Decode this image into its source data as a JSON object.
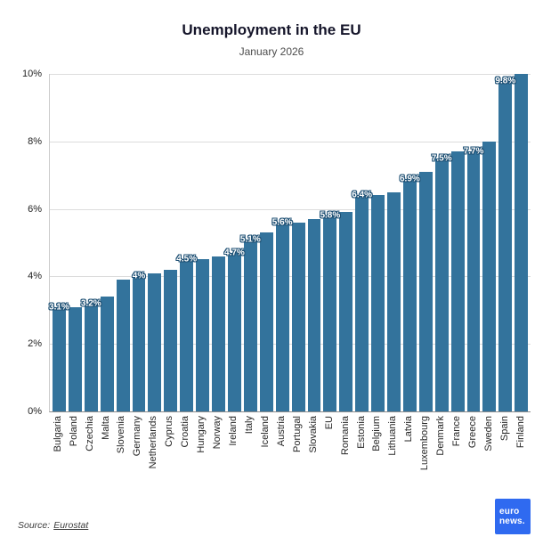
{
  "header": {
    "title": "Unemployment in the EU",
    "subtitle": "January 2026"
  },
  "footer": {
    "source_prefix": "Source:",
    "source_link": "Eurostat",
    "logo_line1": "euro",
    "logo_line2": "news."
  },
  "colors": {
    "bar": "#33739c",
    "bar_label_text": "#ffffff",
    "bar_label_outline": "#1d4f73",
    "grid": "#dcdcdc",
    "axis": "#8c8c8c",
    "logo_bg": "#2f6af0"
  },
  "chart_data": {
    "type": "bar",
    "title": "Unemployment in the EU",
    "subtitle": "January 2026",
    "unit": "%",
    "ylim": [
      0,
      10
    ],
    "grid": "horizontal",
    "legend": "none",
    "yticks": [
      {
        "value": 0,
        "label": "0%"
      },
      {
        "value": 2,
        "label": "2%"
      },
      {
        "value": 4,
        "label": "4%"
      },
      {
        "value": 6,
        "label": "6%"
      },
      {
        "value": 8,
        "label": "8%"
      },
      {
        "value": 10,
        "label": "10%"
      }
    ],
    "points": [
      {
        "country": "Bulgaria",
        "value": 3.1,
        "bar_label": "3.1%"
      },
      {
        "country": "Poland",
        "value": 3.1,
        "bar_label": ""
      },
      {
        "country": "Czechia",
        "value": 3.2,
        "bar_label": "3.2%"
      },
      {
        "country": "Malta",
        "value": 3.4,
        "bar_label": ""
      },
      {
        "country": "Slovenia",
        "value": 3.9,
        "bar_label": ""
      },
      {
        "country": "Germany",
        "value": 4.0,
        "bar_label": "4%"
      },
      {
        "country": "Netherlands",
        "value": 4.1,
        "bar_label": ""
      },
      {
        "country": "Cyprus",
        "value": 4.2,
        "bar_label": ""
      },
      {
        "country": "Croatia",
        "value": 4.5,
        "bar_label": "4.5%"
      },
      {
        "country": "Hungary",
        "value": 4.5,
        "bar_label": ""
      },
      {
        "country": "Norway",
        "value": 4.6,
        "bar_label": ""
      },
      {
        "country": "Ireland",
        "value": 4.7,
        "bar_label": "4.7%"
      },
      {
        "country": "Italy",
        "value": 5.1,
        "bar_label": "5.1%"
      },
      {
        "country": "Iceland",
        "value": 5.3,
        "bar_label": ""
      },
      {
        "country": "Austria",
        "value": 5.6,
        "bar_label": "5.6%"
      },
      {
        "country": "Portugal",
        "value": 5.6,
        "bar_label": ""
      },
      {
        "country": "Slovakia",
        "value": 5.7,
        "bar_label": ""
      },
      {
        "country": "EU",
        "value": 5.8,
        "bar_label": "5.8%"
      },
      {
        "country": "Romania",
        "value": 5.9,
        "bar_label": ""
      },
      {
        "country": "Estonia",
        "value": 6.4,
        "bar_label": "6.4%"
      },
      {
        "country": "Belgium",
        "value": 6.4,
        "bar_label": ""
      },
      {
        "country": "Lithuania",
        "value": 6.5,
        "bar_label": ""
      },
      {
        "country": "Latvia",
        "value": 6.9,
        "bar_label": "6.9%"
      },
      {
        "country": "Luxembourg",
        "value": 7.1,
        "bar_label": ""
      },
      {
        "country": "Denmark",
        "value": 7.5,
        "bar_label": "7.5%"
      },
      {
        "country": "France",
        "value": 7.7,
        "bar_label": ""
      },
      {
        "country": "Greece",
        "value": 7.7,
        "bar_label": "7.7%"
      },
      {
        "country": "Sweden",
        "value": 8.0,
        "bar_label": ""
      },
      {
        "country": "Spain",
        "value": 9.8,
        "bar_label": "9.8%"
      },
      {
        "country": "Finland",
        "value": 10.0,
        "bar_label": ""
      }
    ]
  }
}
